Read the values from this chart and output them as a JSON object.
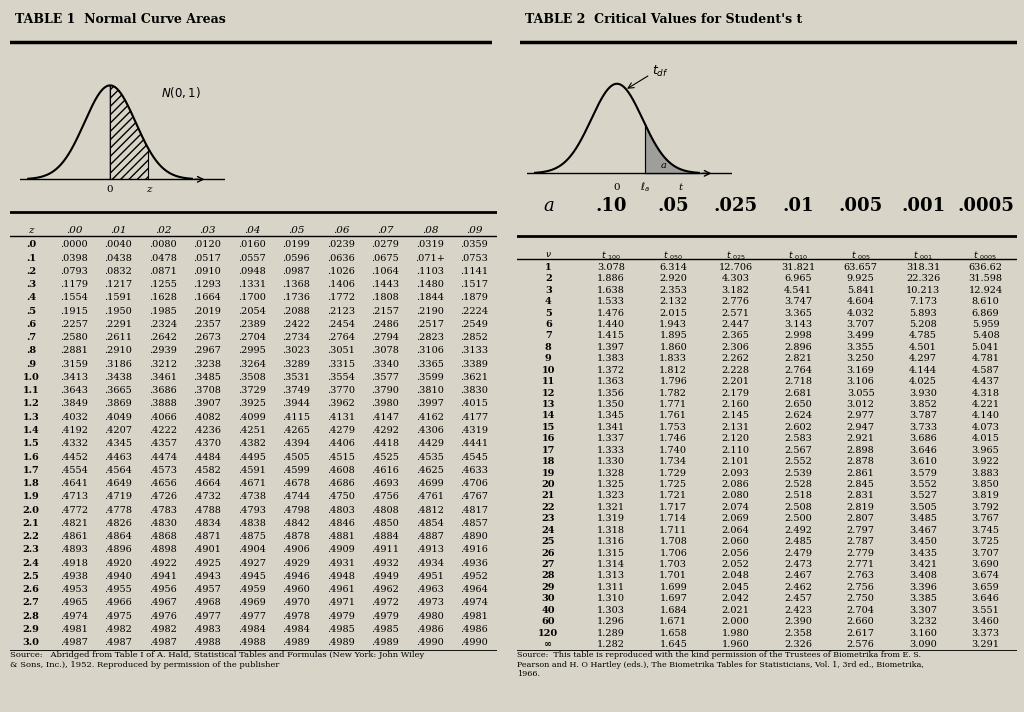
{
  "table1_title": "TABLE 1  Normal Curve Areas",
  "table2_title": "TABLE 2  Critical Values for Student's t",
  "bg_color": "#d8d4c8",
  "table1_headers": [
    "z",
    ".00",
    ".01",
    ".02",
    ".03",
    ".04",
    ".05",
    ".06",
    ".07",
    ".08",
    ".09"
  ],
  "table1_rows": [
    [
      ".0",
      ".0000",
      ".0040",
      ".0080",
      ".0120",
      ".0160",
      ".0199",
      ".0239",
      ".0279",
      ".0319",
      ".0359"
    ],
    [
      ".1",
      ".0398",
      ".0438",
      ".0478",
      ".0517",
      ".0557",
      ".0596",
      ".0636",
      ".0675",
      ".071+",
      ".0753"
    ],
    [
      ".2",
      ".0793",
      ".0832",
      ".0871",
      ".0910",
      ".0948",
      ".0987",
      ".1026",
      ".1064",
      ".1103",
      ".1141"
    ],
    [
      ".3",
      ".1179",
      ".1217",
      ".1255",
      ".1293",
      ".1331",
      ".1368",
      ".1406",
      ".1443",
      ".1480",
      ".1517"
    ],
    [
      ".4",
      ".1554",
      ".1591",
      ".1628",
      ".1664",
      ".1700",
      ".1736",
      ".1772",
      ".1808",
      ".1844",
      ".1879"
    ],
    [
      ".5",
      ".1915",
      ".1950",
      ".1985",
      ".2019",
      ".2054",
      ".2088",
      ".2123",
      ".2157",
      ".2190",
      ".2224"
    ],
    [
      ".6",
      ".2257",
      ".2291",
      ".2324",
      ".2357",
      ".2389",
      ".2422",
      ".2454",
      ".2486",
      ".2517",
      ".2549"
    ],
    [
      ".7",
      ".2580",
      ".2611",
      ".2642",
      ".2673",
      ".2704",
      ".2734",
      ".2764",
      ".2794",
      ".2823",
      ".2852"
    ],
    [
      ".8",
      ".2881",
      ".2910",
      ".2939",
      ".2967",
      ".2995",
      ".3023",
      ".3051",
      ".3078",
      ".3106",
      ".3133"
    ],
    [
      ".9",
      ".3159",
      ".3186",
      ".3212",
      ".3238",
      ".3264",
      ".3289",
      ".3315",
      ".3340",
      ".3365",
      ".3389"
    ],
    [
      "1.0",
      ".3413",
      ".3438",
      ".3461",
      ".3485",
      ".3508",
      ".3531",
      ".3554",
      ".3577",
      ".3599",
      ".3621"
    ],
    [
      "1.1",
      ".3643",
      ".3665",
      ".3686",
      ".3708",
      ".3729",
      ".3749",
      ".3770",
      ".3790",
      ".3810",
      ".3830"
    ],
    [
      "1.2",
      ".3849",
      ".3869",
      ".3888",
      ".3907",
      ".3925",
      ".3944",
      ".3962",
      ".3980",
      ".3997",
      ".4015"
    ],
    [
      "1.3",
      ".4032",
      ".4049",
      ".4066",
      ".4082",
      ".4099",
      ".4115",
      ".4131",
      ".4147",
      ".4162",
      ".4177"
    ],
    [
      "1.4",
      ".4192",
      ".4207",
      ".4222",
      ".4236",
      ".4251",
      ".4265",
      ".4279",
      ".4292",
      ".4306",
      ".4319"
    ],
    [
      "1.5",
      ".4332",
      ".4345",
      ".4357",
      ".4370",
      ".4382",
      ".4394",
      ".4406",
      ".4418",
      ".4429",
      ".4441"
    ],
    [
      "1.6",
      ".4452",
      ".4463",
      ".4474",
      ".4484",
      ".4495",
      ".4505",
      ".4515",
      ".4525",
      ".4535",
      ".4545"
    ],
    [
      "1.7",
      ".4554",
      ".4564",
      ".4573",
      ".4582",
      ".4591",
      ".4599",
      ".4608",
      ".4616",
      ".4625",
      ".4633"
    ],
    [
      "1.8",
      ".4641",
      ".4649",
      ".4656",
      ".4664",
      ".4671",
      ".4678",
      ".4686",
      ".4693",
      ".4699",
      ".4706"
    ],
    [
      "1.9",
      ".4713",
      ".4719",
      ".4726",
      ".4732",
      ".4738",
      ".4744",
      ".4750",
      ".4756",
      ".4761",
      ".4767"
    ],
    [
      "2.0",
      ".4772",
      ".4778",
      ".4783",
      ".4788",
      ".4793",
      ".4798",
      ".4803",
      ".4808",
      ".4812",
      ".4817"
    ],
    [
      "2.1",
      ".4821",
      ".4826",
      ".4830",
      ".4834",
      ".4838",
      ".4842",
      ".4846",
      ".4850",
      ".4854",
      ".4857"
    ],
    [
      "2.2",
      ".4861",
      ".4864",
      ".4868",
      ".4871",
      ".4875",
      ".4878",
      ".4881",
      ".4884",
      ".4887",
      ".4890"
    ],
    [
      "2.3",
      ".4893",
      ".4896",
      ".4898",
      ".4901",
      ".4904",
      ".4906",
      ".4909",
      ".4911",
      ".4913",
      ".4916"
    ],
    [
      "2.4",
      ".4918",
      ".4920",
      ".4922",
      ".4925",
      ".4927",
      ".4929",
      ".4931",
      ".4932",
      ".4934",
      ".4936"
    ],
    [
      "2.5",
      ".4938",
      ".4940",
      ".4941",
      ".4943",
      ".4945",
      ".4946",
      ".4948",
      ".4949",
      ".4951",
      ".4952"
    ],
    [
      "2.6",
      ".4953",
      ".4955",
      ".4956",
      ".4957",
      ".4959",
      ".4960",
      ".4961",
      ".4962",
      ".4963",
      ".4964"
    ],
    [
      "2.7",
      ".4965",
      ".4966",
      ".4967",
      ".4968",
      ".4969",
      ".4970",
      ".4971",
      ".4972",
      ".4973",
      ".4974"
    ],
    [
      "2.8",
      ".4974",
      ".4975",
      ".4976",
      ".4977",
      ".4977",
      ".4978",
      ".4979",
      ".4979",
      ".4980",
      ".4981"
    ],
    [
      "2.9",
      ".4981",
      ".4982",
      ".4982",
      ".4983",
      ".4984",
      ".4984",
      ".4985",
      ".4985",
      ".4986",
      ".4986"
    ],
    [
      "3.0",
      ".4987",
      ".4987",
      ".4987",
      ".4988",
      ".4988",
      ".4989",
      ".4989",
      ".4989",
      ".4990",
      ".4990"
    ]
  ],
  "table1_source": "Source:   Abridged from Table I of A. Hald, Statistical Tables and Formulas (New York: John Wiley\n& Sons, Inc.), 1952. Reproduced by permission of the publisher",
  "table2_headers": [
    "v",
    "t.100",
    "t.050",
    "t.025",
    "t.010",
    "t.005",
    "t.001",
    "t.0005"
  ],
  "table2_alpha_row": [
    "a",
    ".10",
    ".05",
    ".025",
    ".01",
    ".005",
    ".001",
    ".0005"
  ],
  "table2_rows": [
    [
      "1",
      "3.078",
      "6.314",
      "12.706",
      "31.821",
      "63.657",
      "318.31",
      "636.62"
    ],
    [
      "2",
      "1.886",
      "2.920",
      "4.303",
      "6.965",
      "9.925",
      "22.326",
      "31.598"
    ],
    [
      "3",
      "1.638",
      "2.353",
      "3.182",
      "4.541",
      "5.841",
      "10.213",
      "12.924"
    ],
    [
      "4",
      "1.533",
      "2.132",
      "2.776",
      "3.747",
      "4.604",
      "7.173",
      "8.610"
    ],
    [
      "5",
      "1.476",
      "2.015",
      "2.571",
      "3.365",
      "4.032",
      "5.893",
      "6.869"
    ],
    [
      "6",
      "1.440",
      "1.943",
      "2.447",
      "3.143",
      "3.707",
      "5.208",
      "5.959"
    ],
    [
      "7",
      "1.415",
      "1.895",
      "2.365",
      "2.998",
      "3.499",
      "4.785",
      "5.408"
    ],
    [
      "8",
      "1.397",
      "1.860",
      "2.306",
      "2.896",
      "3.355",
      "4.501",
      "5.041"
    ],
    [
      "9",
      "1.383",
      "1.833",
      "2.262",
      "2.821",
      "3.250",
      "4.297",
      "4.781"
    ],
    [
      "10",
      "1.372",
      "1.812",
      "2.228",
      "2.764",
      "3.169",
      "4.144",
      "4.587"
    ],
    [
      "11",
      "1.363",
      "1.796",
      "2.201",
      "2.718",
      "3.106",
      "4.025",
      "4.437"
    ],
    [
      "12",
      "1.356",
      "1.782",
      "2.179",
      "2.681",
      "3.055",
      "3.930",
      "4.318"
    ],
    [
      "13",
      "1.350",
      "1.771",
      "2.160",
      "2.650",
      "3.012",
      "3.852",
      "4.221"
    ],
    [
      "14",
      "1.345",
      "1.761",
      "2.145",
      "2.624",
      "2.977",
      "3.787",
      "4.140"
    ],
    [
      "15",
      "1.341",
      "1.753",
      "2.131",
      "2.602",
      "2.947",
      "3.733",
      "4.073"
    ],
    [
      "16",
      "1.337",
      "1.746",
      "2.120",
      "2.583",
      "2.921",
      "3.686",
      "4.015"
    ],
    [
      "17",
      "1.333",
      "1.740",
      "2.110",
      "2.567",
      "2.898",
      "3.646",
      "3.965"
    ],
    [
      "18",
      "1.330",
      "1.734",
      "2.101",
      "2.552",
      "2.878",
      "3.610",
      "3.922"
    ],
    [
      "19",
      "1.328",
      "1.729",
      "2.093",
      "2.539",
      "2.861",
      "3.579",
      "3.883"
    ],
    [
      "20",
      "1.325",
      "1.725",
      "2.086",
      "2.528",
      "2.845",
      "3.552",
      "3.850"
    ],
    [
      "21",
      "1.323",
      "1.721",
      "2.080",
      "2.518",
      "2.831",
      "3.527",
      "3.819"
    ],
    [
      "22",
      "1.321",
      "1.717",
      "2.074",
      "2.508",
      "2.819",
      "3.505",
      "3.792"
    ],
    [
      "23",
      "1.319",
      "1.714",
      "2.069",
      "2.500",
      "2.807",
      "3.485",
      "3.767"
    ],
    [
      "24",
      "1.318",
      "1.711",
      "2.064",
      "2.492",
      "2.797",
      "3.467",
      "3.745"
    ],
    [
      "25",
      "1.316",
      "1.708",
      "2.060",
      "2.485",
      "2.787",
      "3.450",
      "3.725"
    ],
    [
      "26",
      "1.315",
      "1.706",
      "2.056",
      "2.479",
      "2.779",
      "3.435",
      "3.707"
    ],
    [
      "27",
      "1.314",
      "1.703",
      "2.052",
      "2.473",
      "2.771",
      "3.421",
      "3.690"
    ],
    [
      "28",
      "1.313",
      "1.701",
      "2.048",
      "2.467",
      "2.763",
      "3.408",
      "3.674"
    ],
    [
      "29",
      "1.311",
      "1.699",
      "2.045",
      "2.462",
      "2.756",
      "3.396",
      "3.659"
    ],
    [
      "30",
      "1.310",
      "1.697",
      "2.042",
      "2.457",
      "2.750",
      "3.385",
      "3.646"
    ],
    [
      "40",
      "1.303",
      "1.684",
      "2.021",
      "2.423",
      "2.704",
      "3.307",
      "3.551"
    ],
    [
      "60",
      "1.296",
      "1.671",
      "2.000",
      "2.390",
      "2.660",
      "3.232",
      "3.460"
    ],
    [
      "120",
      "1.289",
      "1.658",
      "1.980",
      "2.358",
      "2.617",
      "3.160",
      "3.373"
    ],
    [
      "∞",
      "1.282",
      "1.645",
      "1.960",
      "2.326",
      "2.576",
      "3.090",
      "3.291"
    ]
  ],
  "table2_source": "Source:  This table is reproduced with the kind permission of the Trustees of Biometrika from E. S.\nPearson and H. O Hartley (eds.), The Biometrika Tables for Statisticians, Vol. 1, 3rd ed., Biometrika,\n1966."
}
